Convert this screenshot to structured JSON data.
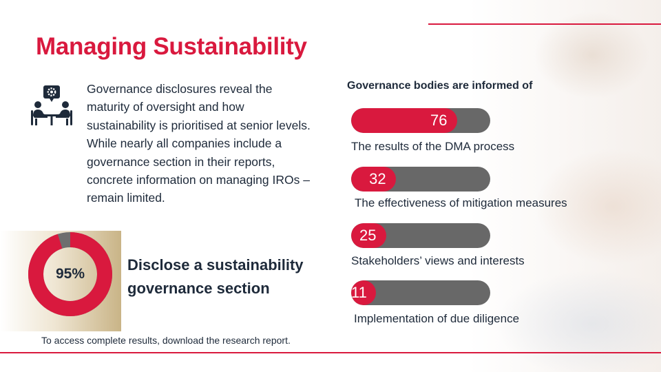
{
  "title": "Managing Sustainability",
  "intro": "Governance disclosures reveal the maturity of oversight and how sustainability is prioritised at senior levels.  While nearly all companies include a governance section in their reports, concrete information on managing IROs – remain limited.",
  "highlight": {
    "percent_label": "95%",
    "percent_value": 95,
    "text": "Disclose a sustainability governance section"
  },
  "footnote": "To access complete results, download the research report.",
  "governance": {
    "heading": "Governance bodies are informed of",
    "items": [
      {
        "value": 76,
        "label": "76",
        "caption": "The results of the DMA process"
      },
      {
        "value": 32,
        "label": "32",
        "caption": "The effectiveness of mitigation measures"
      },
      {
        "value": 25,
        "label": "25",
        "caption": "Stakeholders’ views and interests"
      },
      {
        "value": 11,
        "label": "11",
        "caption": "Implementation of due diligence"
      }
    ]
  },
  "colors": {
    "accent": "#d9193e",
    "track": "#686868",
    "text": "#1e2a3a",
    "donut_gap": "#6e6e6e"
  },
  "icons": {
    "meeting": "meeting-gear-icon"
  }
}
